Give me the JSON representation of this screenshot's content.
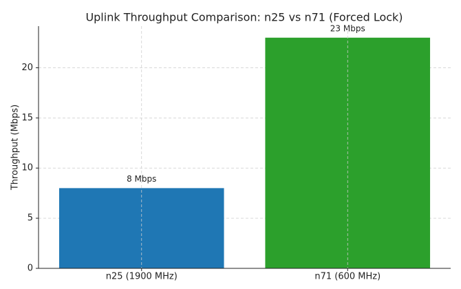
{
  "chart_data": {
    "type": "bar",
    "title": "Uplink Throughput Comparison: n25 vs n71 (Forced Lock)",
    "y_label": "Throughput (Mbps)",
    "categories": [
      "n25 (1900 MHz)",
      "n71 (600 MHz)"
    ],
    "values": [
      8,
      23
    ],
    "value_labels": [
      "8 Mbps",
      "23 Mbps"
    ],
    "colors": [
      "#1f77b4",
      "#2ca02c"
    ],
    "ylim": [
      0,
      24.15
    ],
    "yticks": [
      0,
      5,
      10,
      15,
      20
    ],
    "grid": true
  }
}
